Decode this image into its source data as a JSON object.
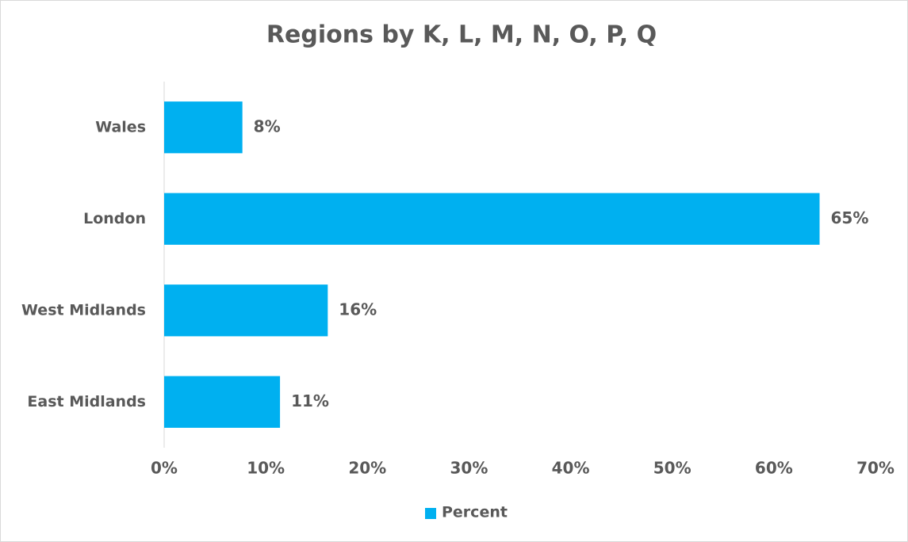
{
  "chart_data": {
    "type": "bar",
    "orientation": "horizontal",
    "title": "Regions by K, L, M, N, O, P, Q",
    "categories": [
      "Wales",
      "London",
      "West Midlands",
      "East Midlands"
    ],
    "series": [
      {
        "name": "Percent",
        "color": "#00b0f0",
        "values": [
          7.7,
          64.5,
          16.1,
          11.4
        ],
        "value_labels": [
          "8%",
          "65%",
          "16%",
          "11%"
        ]
      }
    ],
    "xlim": [
      0,
      70
    ],
    "xticks": [
      {
        "value": 0,
        "label": "0%"
      },
      {
        "value": 10,
        "label": "10%"
      },
      {
        "value": 20,
        "label": "20%"
      },
      {
        "value": 30,
        "label": "30%"
      },
      {
        "value": 40,
        "label": "40%"
      },
      {
        "value": 50,
        "label": "50%"
      },
      {
        "value": 60,
        "label": "60%"
      },
      {
        "value": 70,
        "label": "70%"
      }
    ],
    "grid": false,
    "legend": "bottom"
  }
}
